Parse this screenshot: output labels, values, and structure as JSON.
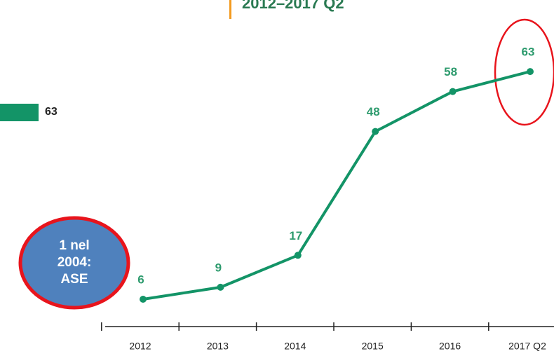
{
  "chart_data": [
    {
      "type": "line",
      "title": "2012–2017 Q2",
      "categories": [
        "2012",
        "2013",
        "2014",
        "2015",
        "2016",
        "2017 Q2"
      ],
      "series": [
        {
          "name": null,
          "color": "#139467",
          "values": [
            6,
            9,
            17,
            48,
            58,
            63
          ]
        }
      ],
      "annotation_lines": [
        "1 nel",
        "2004:",
        "ASE"
      ]
    },
    {
      "type": "bar",
      "color": "#139467",
      "values": [
        63
      ]
    }
  ]
}
